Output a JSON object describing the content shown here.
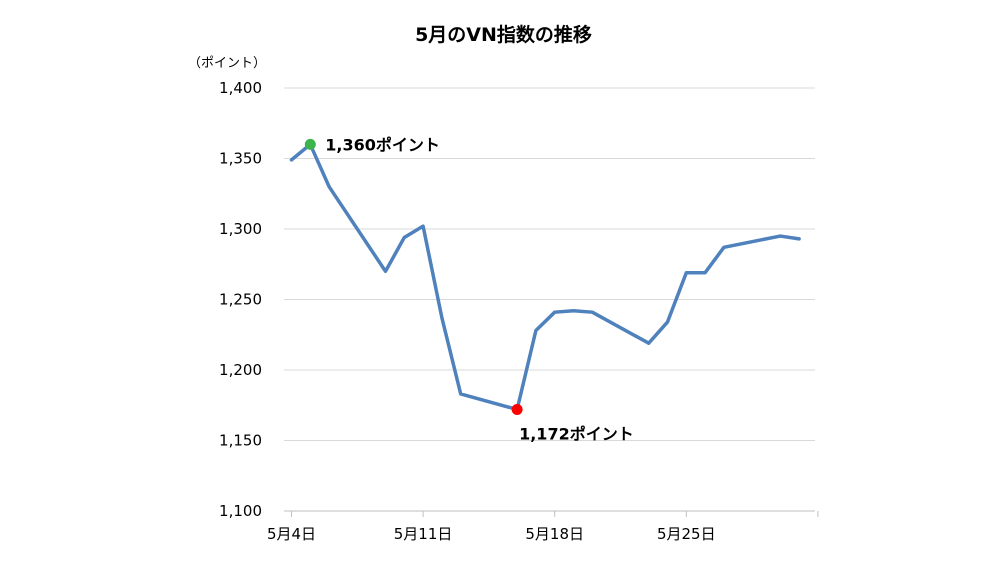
{
  "chart_data": {
    "type": "line",
    "title": "5月のVN指数の推移",
    "unit_label": "（ポイント）",
    "ylim": [
      1100,
      1400
    ],
    "y_ticks": [
      1100,
      1150,
      1200,
      1250,
      1300,
      1350,
      1400
    ],
    "y_tick_labels": [
      "1,100",
      "1,150",
      "1,200",
      "1,250",
      "1,300",
      "1,350",
      "1,400"
    ],
    "xlim": [
      4,
      31
    ],
    "x_ticks": [
      4,
      11,
      18,
      25,
      32
    ],
    "x_tick_labels": [
      "5月4日",
      "5月11日",
      "5月18日",
      "5月25日",
      ""
    ],
    "grid": true,
    "line_color": "#4F81BD",
    "series": [
      {
        "x": [
          4,
          5,
          6,
          9,
          10,
          11,
          12,
          13,
          16,
          17,
          18,
          19,
          20,
          23,
          24,
          25,
          26,
          27,
          30,
          31
        ],
        "values": [
          1349,
          1360,
          1330,
          1270,
          1294,
          1302,
          1237,
          1183,
          1172,
          1228,
          1241,
          1242,
          1241,
          1219,
          1234,
          1269,
          1269,
          1287,
          1295,
          1293
        ]
      }
    ],
    "annotations": [
      {
        "x": 5,
        "y": 1360,
        "text": "1,360ポイント",
        "color": "#3CB44B"
      },
      {
        "x": 16,
        "y": 1172,
        "text": "1,172ポイント",
        "color": "#FF0000"
      }
    ]
  }
}
